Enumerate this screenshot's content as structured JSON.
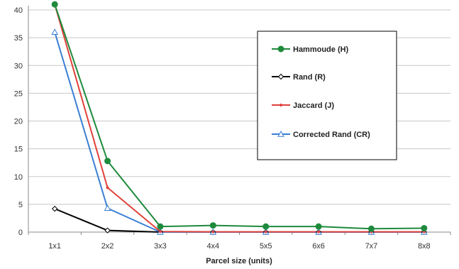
{
  "chart_data": {
    "type": "line",
    "title": "",
    "xlabel": "Parcel size (units)",
    "ylabel": "",
    "categories": [
      "1x1",
      "2x2",
      "3x3",
      "4x4",
      "5x5",
      "6x6",
      "7x7",
      "8x8"
    ],
    "ylim": [
      0,
      40
    ],
    "yticks": [
      0,
      5,
      10,
      15,
      20,
      25,
      30,
      35,
      40
    ],
    "grid": true,
    "legend_position": "top-right",
    "series": [
      {
        "name": "Hammoude (H)",
        "color": "#1e8a3c",
        "marker": "circle",
        "values": [
          41,
          12.8,
          1.0,
          1.2,
          1.0,
          1.0,
          0.6,
          0.7
        ]
      },
      {
        "name": "Rand (R)",
        "color": "#000000",
        "marker": "diamond",
        "values": [
          4.2,
          0.3,
          0.0,
          0.0,
          0.0,
          0.0,
          0.0,
          0.0
        ]
      },
      {
        "name": "Jaccard (J)",
        "color": "#e0413a",
        "marker": "line",
        "values": [
          41,
          8.0,
          0.1,
          0.05,
          0.05,
          0.05,
          0.05,
          0.05
        ]
      },
      {
        "name": "Corrected Rand (CR)",
        "color": "#3a7fd4",
        "marker": "triangle",
        "values": [
          36,
          4.3,
          0.0,
          0.0,
          0.0,
          0.0,
          0.0,
          0.0
        ]
      }
    ]
  }
}
